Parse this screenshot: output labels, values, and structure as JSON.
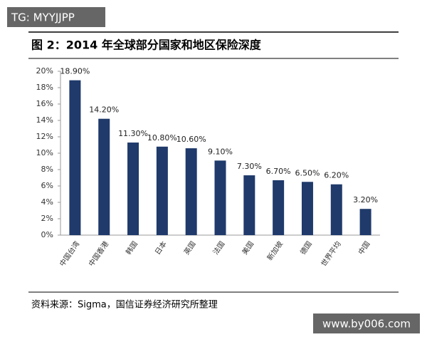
{
  "chart_data": {
    "type": "bar",
    "title": "图 2：2014 年全球部分国家和地区保险深度",
    "categories": [
      "中国台湾",
      "中国香港",
      "韩国",
      "日本",
      "英国",
      "法国",
      "美国",
      "新加坡",
      "德国",
      "世界平均",
      "中国"
    ],
    "values": [
      18.9,
      14.2,
      11.3,
      10.8,
      10.6,
      9.1,
      7.3,
      6.7,
      6.5,
      6.2,
      3.2
    ],
    "value_labels": [
      "18.90%",
      "14.20%",
      "11.30%",
      "10.80%",
      "10.60%",
      "9.10%",
      "7.30%",
      "6.70%",
      "6.50%",
      "6.20%",
      "3.20%"
    ],
    "color": "#1f3a6b",
    "ylim": [
      0,
      20
    ],
    "yticks": [
      {
        "value": 0,
        "label": "0%"
      },
      {
        "value": 2,
        "label": "2%"
      },
      {
        "value": 4,
        "label": "4%"
      },
      {
        "value": 6,
        "label": "6%"
      },
      {
        "value": 8,
        "label": "8%"
      },
      {
        "value": 10,
        "label": "10%"
      },
      {
        "value": 12,
        "label": "12%"
      },
      {
        "value": 14,
        "label": "14%"
      },
      {
        "value": 16,
        "label": "16%"
      },
      {
        "value": 18,
        "label": "18%"
      },
      {
        "value": 20,
        "label": "20%"
      }
    ],
    "source": "资料来源：Sigma，国信证券经济研究所整理"
  },
  "watermarks": [
    "TG: MYYJJPP",
    "www.by006.com"
  ]
}
